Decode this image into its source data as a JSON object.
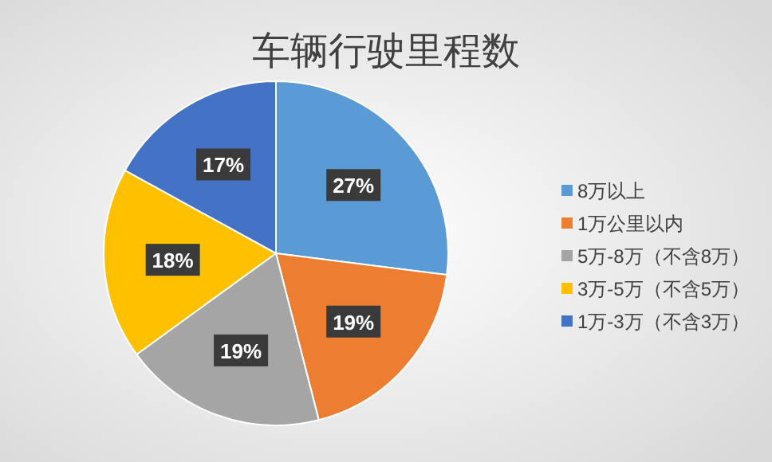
{
  "chart_data": {
    "type": "pie",
    "title": "车辆行驶里程数",
    "categories": [
      "8万以上",
      "1万公里以内",
      "5万-8万（不含8万）",
      "3万-5万（不含5万）",
      "1万-3万（不含3万）"
    ],
    "values": [
      27,
      19,
      19,
      18,
      17
    ],
    "colors": [
      "#5b9bd5",
      "#ed7d31",
      "#a5a5a5",
      "#ffc000",
      "#4472c4"
    ],
    "value_labels": [
      "27%",
      "19%",
      "19%",
      "18%",
      "17%"
    ],
    "legend": "right"
  }
}
